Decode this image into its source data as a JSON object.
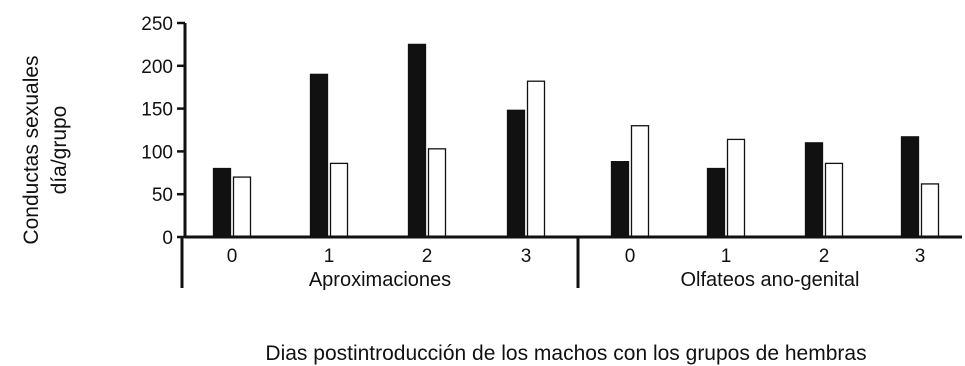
{
  "chart_data": {
    "type": "bar",
    "ylabel_line1": "Conductas sexuales",
    "ylabel_line2": "día/grupo",
    "xlabel": "Dias postintroducción de los machos con los grupos de hembras",
    "ylim": [
      0,
      250
    ],
    "yticks": [
      0,
      50,
      100,
      150,
      200,
      250
    ],
    "groups": [
      {
        "label": "Aproximaciones",
        "categories": [
          "0",
          "1",
          "2",
          "3"
        ]
      },
      {
        "label": "Olfateos ano-genital",
        "categories": [
          "0",
          "1",
          "2",
          "3"
        ]
      }
    ],
    "series": [
      {
        "color": "#111111",
        "values": [
          80,
          190,
          225,
          148,
          88,
          80,
          110,
          117
        ]
      },
      {
        "color": "#ffffff",
        "values": [
          70,
          86,
          103,
          182,
          130,
          114,
          86,
          62
        ]
      }
    ]
  }
}
